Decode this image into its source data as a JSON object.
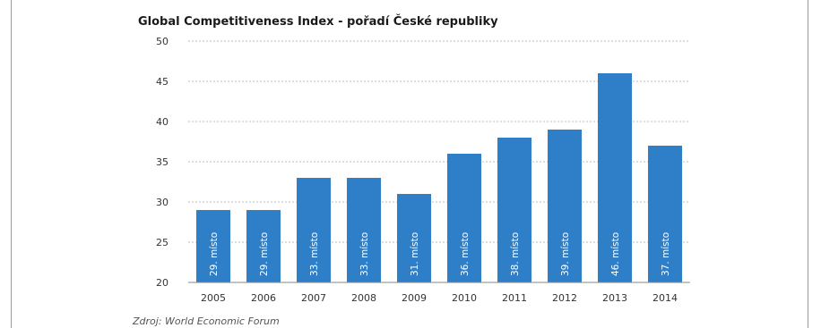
{
  "chart_data": {
    "type": "bar",
    "title": "Global Competitiveness Index - pořadí České republiky",
    "categories": [
      "2005",
      "2006",
      "2007",
      "2008",
      "2009",
      "2010",
      "2011",
      "2012",
      "2013",
      "2014"
    ],
    "values": [
      29,
      29,
      33,
      33,
      31,
      36,
      38,
      39,
      46,
      37
    ],
    "data_labels": [
      "29. místo",
      "29. místo",
      "33. místo",
      "33. místo",
      "31. místo",
      "36. místo",
      "38. místo",
      "39. místo",
      "46. místo",
      "37. místo"
    ],
    "ylim": [
      20,
      50
    ],
    "yticks": [
      20,
      25,
      30,
      35,
      40,
      45,
      50
    ],
    "grid": true,
    "bar_color": "#2f7fc8",
    "source": "Zdroj: World Economic Forum"
  }
}
